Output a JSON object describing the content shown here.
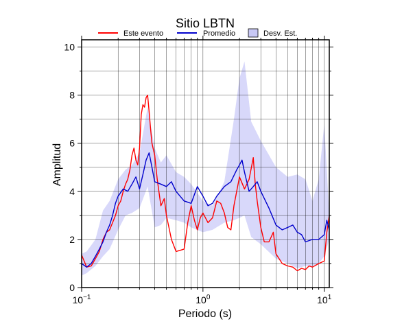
{
  "chart_data": {
    "type": "line",
    "title": "Sitio LBTN",
    "xlabel": "Periodo (s)",
    "ylabel": "Amplitud",
    "xscale": "log",
    "xlim": [
      0.1,
      11
    ],
    "ylim": [
      0,
      10.3
    ],
    "grid": true,
    "legend_position": "top",
    "x_ticks": [
      {
        "value": 0.1,
        "base": "10",
        "exp": "−1"
      },
      {
        "value": 1,
        "base": "10",
        "exp": "0"
      },
      {
        "value": 10,
        "base": "10",
        "exp": "1"
      }
    ],
    "y_ticks": [
      0,
      2,
      4,
      6,
      8,
      10
    ],
    "legend": [
      {
        "label": "Este evento",
        "kind": "line",
        "color": "#ff0000"
      },
      {
        "label": "Promedio",
        "kind": "line",
        "color": "#0000cc"
      },
      {
        "label": "Desv. Est.",
        "kind": "band",
        "color": "#c8c8f5"
      }
    ],
    "band": {
      "name": "Desv. Est.",
      "color": "#d8d8fa",
      "x": [
        0.1,
        0.11,
        0.13,
        0.15,
        0.17,
        0.2,
        0.23,
        0.26,
        0.3,
        0.35,
        0.4,
        0.45,
        0.5,
        0.6,
        0.7,
        0.8,
        1.0,
        1.2,
        1.5,
        1.8,
        2.0,
        2.2,
        2.5,
        3.0,
        4.0,
        5.0,
        6.0,
        7.0,
        8.0,
        9.0,
        10.0,
        11.0
      ],
      "upper": [
        1.4,
        1.5,
        2.0,
        3.2,
        3.6,
        4.5,
        4.9,
        5.1,
        5.6,
        7.5,
        5.8,
        5.2,
        5.5,
        4.8,
        4.6,
        4.3,
        3.6,
        3.4,
        4.4,
        7.0,
        8.7,
        9.4,
        6.9,
        6.1,
        5.0,
        4.6,
        4.7,
        4.5,
        3.6,
        4.5,
        6.8,
        3.0
      ],
      "lower": [
        0.5,
        0.6,
        0.9,
        1.3,
        1.6,
        2.4,
        3.0,
        3.1,
        3.3,
        4.2,
        2.5,
        2.6,
        2.9,
        2.8,
        2.7,
        2.5,
        2.3,
        2.4,
        2.7,
        2.8,
        2.9,
        3.0,
        2.1,
        1.8,
        1.2,
        1.0,
        0.8,
        0.9,
        0.9,
        1.0,
        1.3,
        2.0
      ]
    },
    "series": [
      {
        "name": "Este evento",
        "color": "#ff0000",
        "x": [
          0.1,
          0.105,
          0.11,
          0.12,
          0.13,
          0.14,
          0.15,
          0.16,
          0.17,
          0.18,
          0.19,
          0.2,
          0.21,
          0.22,
          0.23,
          0.24,
          0.25,
          0.26,
          0.27,
          0.28,
          0.29,
          0.3,
          0.31,
          0.32,
          0.33,
          0.34,
          0.35,
          0.36,
          0.37,
          0.38,
          0.4,
          0.42,
          0.45,
          0.48,
          0.5,
          0.55,
          0.6,
          0.65,
          0.7,
          0.75,
          0.8,
          0.85,
          0.9,
          0.95,
          1.0,
          1.1,
          1.2,
          1.3,
          1.4,
          1.5,
          1.6,
          1.7,
          1.8,
          2.0,
          2.2,
          2.4,
          2.6,
          2.7,
          2.8,
          3.0,
          3.2,
          3.5,
          3.8,
          4.0,
          4.5,
          5.0,
          5.5,
          6.0,
          6.5,
          7.0,
          7.5,
          8.0,
          9.0,
          10.0,
          10.5,
          11.0
        ],
        "y": [
          1.35,
          1.1,
          0.85,
          0.9,
          1.2,
          1.5,
          2.0,
          2.3,
          2.4,
          2.7,
          3.0,
          3.4,
          3.6,
          4.0,
          4.3,
          4.5,
          4.9,
          5.5,
          5.8,
          5.3,
          5.1,
          5.8,
          7.2,
          7.6,
          7.5,
          7.9,
          8.0,
          7.3,
          6.6,
          6.0,
          5.5,
          4.5,
          3.4,
          3.7,
          3.0,
          2.0,
          1.5,
          1.55,
          1.6,
          2.7,
          3.4,
          2.8,
          2.4,
          2.9,
          3.1,
          2.7,
          2.9,
          3.6,
          3.5,
          3.1,
          2.5,
          2.4,
          3.4,
          4.6,
          4.1,
          4.5,
          5.4,
          4.3,
          3.6,
          2.5,
          1.9,
          1.9,
          2.3,
          1.4,
          1.0,
          0.9,
          0.85,
          0.7,
          0.8,
          0.75,
          0.9,
          0.85,
          1.0,
          1.1,
          2.3,
          3.0
        ]
      },
      {
        "name": "Promedio",
        "color": "#0000cc",
        "x": [
          0.1,
          0.11,
          0.12,
          0.13,
          0.14,
          0.15,
          0.16,
          0.17,
          0.18,
          0.19,
          0.2,
          0.22,
          0.24,
          0.26,
          0.28,
          0.3,
          0.32,
          0.34,
          0.36,
          0.38,
          0.4,
          0.45,
          0.5,
          0.55,
          0.6,
          0.7,
          0.8,
          0.9,
          1.0,
          1.1,
          1.2,
          1.3,
          1.5,
          1.7,
          1.9,
          2.0,
          2.1,
          2.2,
          2.4,
          2.6,
          2.8,
          3.0,
          3.5,
          4.0,
          4.5,
          5.0,
          5.5,
          6.0,
          6.5,
          7.0,
          8.0,
          9.0,
          10.0,
          10.5,
          11.0
        ],
        "y": [
          1.0,
          0.85,
          1.0,
          1.3,
          1.6,
          1.9,
          2.3,
          2.6,
          3.0,
          3.5,
          3.8,
          4.1,
          4.0,
          4.3,
          4.6,
          4.1,
          4.7,
          5.3,
          5.6,
          5.0,
          4.4,
          4.3,
          4.2,
          4.4,
          4.0,
          3.6,
          3.5,
          4.2,
          3.8,
          3.4,
          3.5,
          3.8,
          4.2,
          4.4,
          4.9,
          5.1,
          5.3,
          4.8,
          4.0,
          4.2,
          4.4,
          4.0,
          3.3,
          2.6,
          2.4,
          2.5,
          2.6,
          2.3,
          2.2,
          1.9,
          2.0,
          2.0,
          2.2,
          2.8,
          2.4
        ]
      }
    ]
  }
}
